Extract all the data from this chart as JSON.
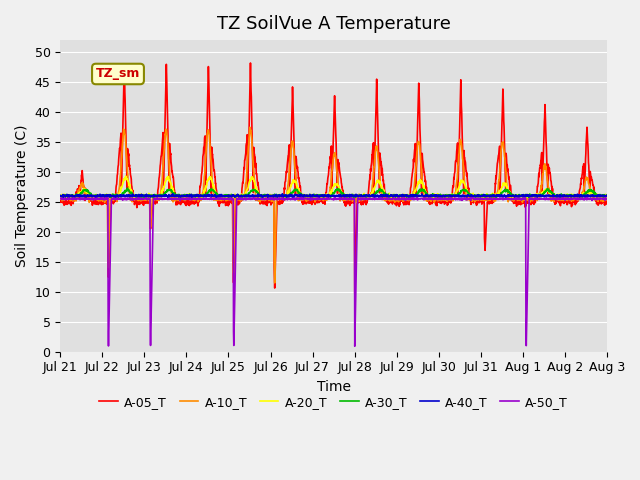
{
  "title": "TZ SoilVue A Temperature",
  "xlabel": "Time",
  "ylabel": "Soil Temperature (C)",
  "ylim": [
    0,
    52
  ],
  "yticks": [
    0,
    5,
    10,
    15,
    20,
    25,
    30,
    35,
    40,
    45,
    50
  ],
  "date_labels": [
    "Jul 21",
    "Jul 22",
    "Jul 23",
    "Jul 24",
    "Jul 25",
    "Jul 26",
    "Jul 27",
    "Jul 28",
    "Jul 29",
    "Jul 30",
    "Jul 31",
    "Aug 1",
    "Aug 2",
    "Aug 3"
  ],
  "legend_labels": [
    "A-05_T",
    "A-10_T",
    "A-20_T",
    "A-30_T",
    "A-40_T",
    "A-50_T"
  ],
  "legend_colors": [
    "#ff0000",
    "#ff8c00",
    "#ffff00",
    "#00bb00",
    "#0000cc",
    "#9900cc"
  ],
  "annotation_text": "TZ_sm",
  "background_color": "#e8e8e8",
  "plot_bg_color": "#e0e0e0",
  "grid_color": "#ffffff",
  "title_fontsize": 13,
  "axis_fontsize": 10,
  "tick_fontsize": 9
}
